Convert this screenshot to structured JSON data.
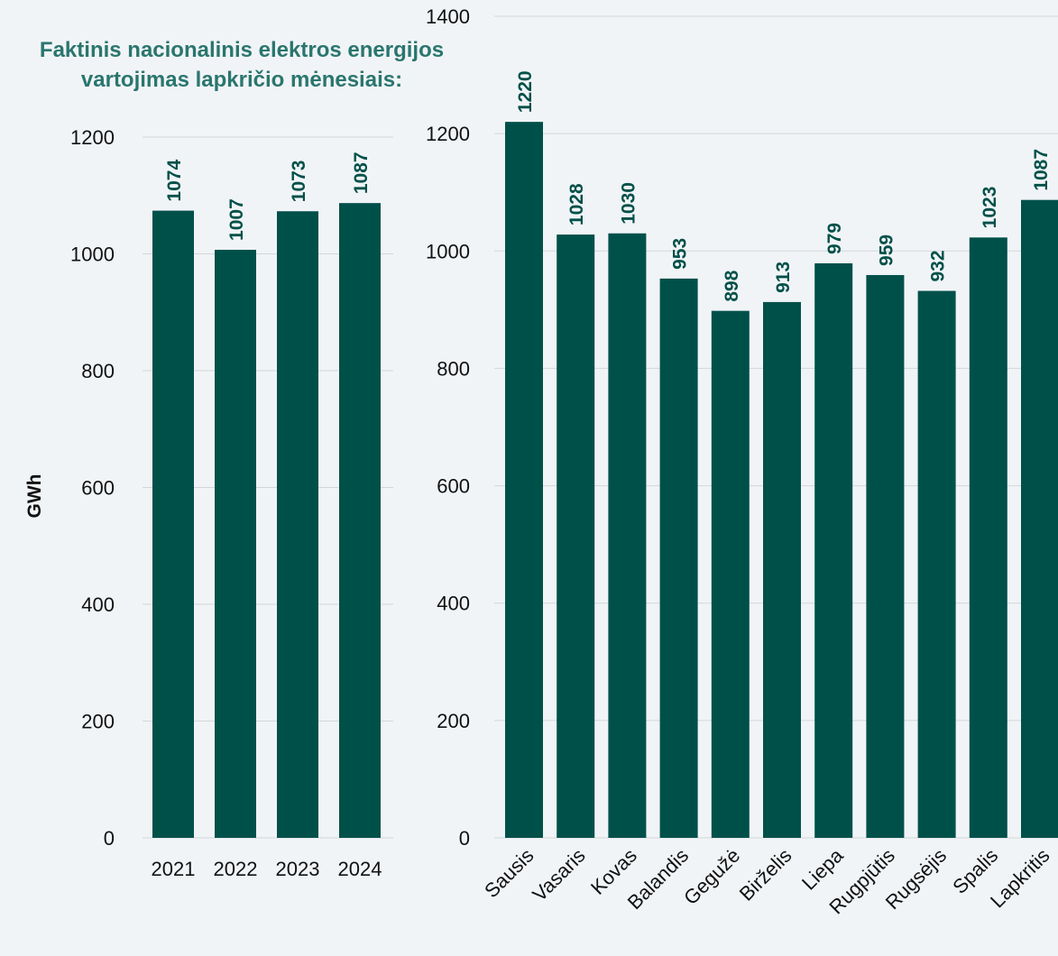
{
  "chart_data": [
    {
      "type": "bar",
      "title": "Faktinis nacionalinis elektros energijos vartojimas lapkričio mėnesiais:",
      "ylabel": "GWh",
      "xlabel": "",
      "categories": [
        "2021",
        "2022",
        "2023",
        "2024"
      ],
      "values": [
        1074,
        1007,
        1073,
        1087
      ],
      "ylim": [
        0,
        1200
      ],
      "yticks": [
        0,
        200,
        400,
        600,
        800,
        1000,
        1200
      ],
      "grid": true,
      "color": "#00504a"
    },
    {
      "type": "bar",
      "title": "",
      "ylabel": "",
      "xlabel": "",
      "categories": [
        "Sausis",
        "Vasaris",
        "Kovas",
        "Balandis",
        "Gegužė",
        "Birželis",
        "Liepa",
        "Rugpjūtis",
        "Rugsėjis",
        "Spalis",
        "Lapkritis"
      ],
      "values": [
        1220,
        1028,
        1030,
        953,
        898,
        913,
        979,
        959,
        932,
        1023,
        1087
      ],
      "ylim": [
        0,
        1400
      ],
      "yticks": [
        0,
        200,
        400,
        600,
        800,
        1000,
        1200,
        1400
      ],
      "grid": true,
      "color": "#00504a"
    }
  ]
}
